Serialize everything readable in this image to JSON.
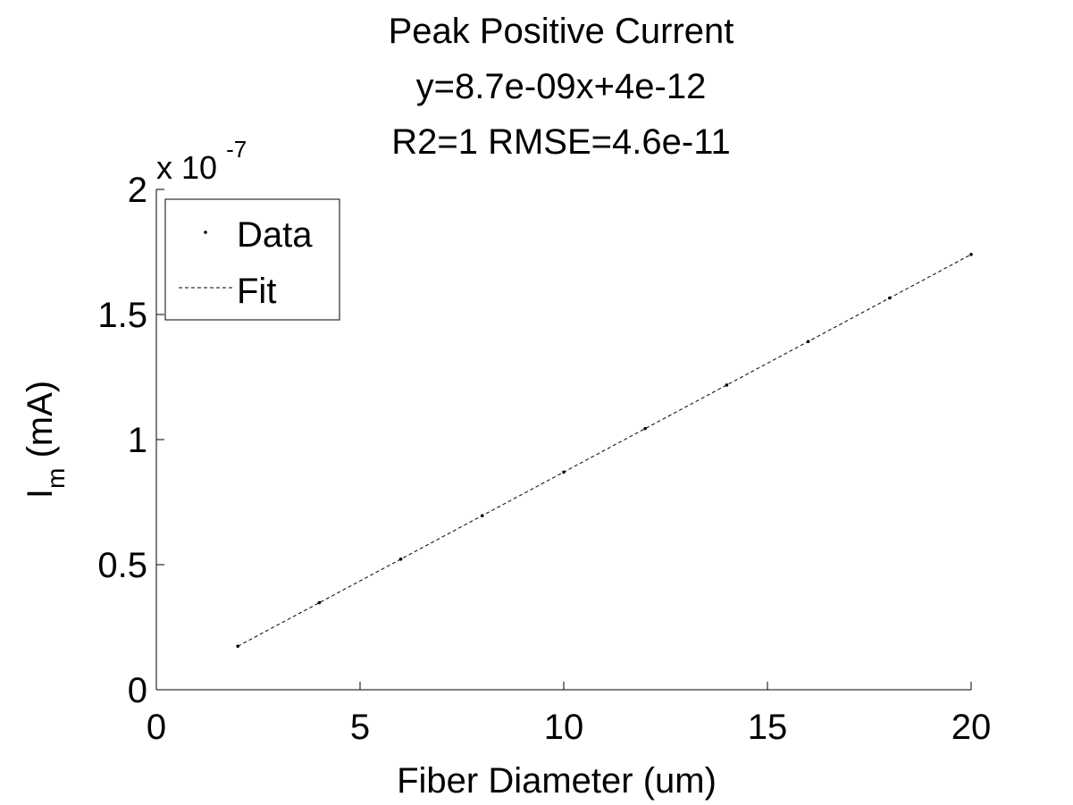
{
  "chart_data": {
    "type": "scatter",
    "title_lines": [
      "Peak Positive Current",
      "y=8.7e-09x+4e-12",
      "R2=1 RMSE=4.6e-11"
    ],
    "xlabel": "Fiber Diameter (um)",
    "ylabel": {
      "main": "I",
      "subscript": "m",
      "unit": " (mA)"
    },
    "y_multiplier": {
      "base": "x 10",
      "exponent": "-7"
    },
    "xlim": [
      0,
      20
    ],
    "ylim": [
      0,
      2
    ],
    "x_ticks": [
      0,
      5,
      10,
      15,
      20
    ],
    "x_tick_labels": [
      "0",
      "5",
      "10",
      "15",
      "20"
    ],
    "y_ticks": [
      0,
      0.5,
      1,
      1.5,
      2
    ],
    "y_tick_labels": [
      "0",
      "0.5",
      "1",
      "1.5",
      "2"
    ],
    "series": [
      {
        "name": "Data",
        "style": "points",
        "color": "#000000",
        "x": [
          2,
          4,
          6,
          8,
          10,
          12,
          14,
          16,
          18,
          20
        ],
        "y": [
          0.174,
          0.348,
          0.522,
          0.696,
          0.87,
          1.044,
          1.218,
          1.392,
          1.566,
          1.74
        ]
      },
      {
        "name": "Fit",
        "style": "dashed-line",
        "color": "#000000",
        "x": [
          2,
          20
        ],
        "y": [
          0.174,
          1.74
        ]
      }
    ],
    "legend_position": "top-left",
    "grid": false
  }
}
